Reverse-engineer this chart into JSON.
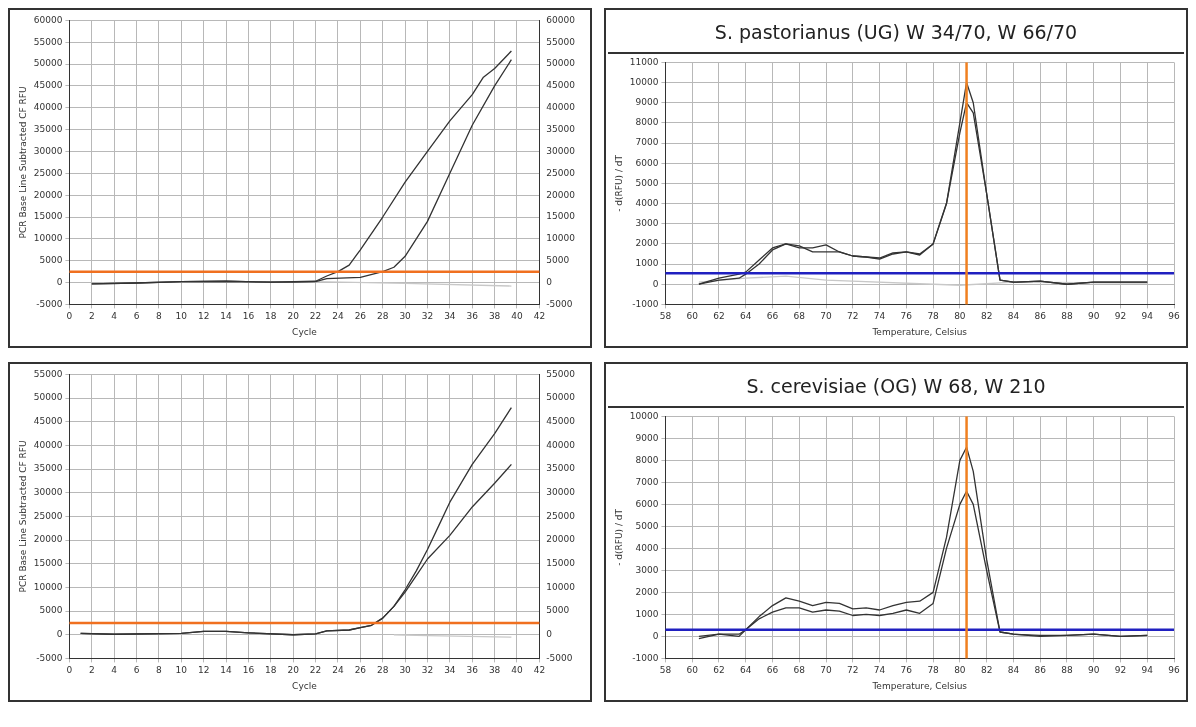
{
  "chart_data": [
    {
      "type": "line",
      "xlabel": "Cycle",
      "ylabel": "PCR Base Line Subtracted CF RFU",
      "xlim": [
        0,
        42
      ],
      "xticks": [
        0,
        2,
        4,
        6,
        8,
        10,
        12,
        14,
        16,
        18,
        20,
        22,
        24,
        26,
        28,
        30,
        32,
        34,
        36,
        38,
        40,
        42
      ],
      "ylim": [
        -5000,
        60000
      ],
      "yticks": [
        -5000,
        0,
        5000,
        10000,
        15000,
        20000,
        25000,
        30000,
        35000,
        40000,
        45000,
        50000,
        55000,
        60000
      ],
      "y2lim": [
        -5000,
        60000
      ],
      "y2ticks": [
        -5000,
        0,
        5000,
        10000,
        15000,
        20000,
        25000,
        30000,
        35000,
        40000,
        45000,
        50000,
        55000,
        60000
      ],
      "grid": true,
      "legend": false,
      "line_style": "solid",
      "marker": "none",
      "ref_lines": [
        {
          "axis": "y",
          "value": 2500,
          "color": "#f07020"
        }
      ],
      "series": [
        {
          "color": "#333333",
          "x": [
            2,
            6,
            10,
            14,
            18,
            20,
            22,
            23,
            24,
            25,
            26,
            28,
            30,
            32,
            34,
            36,
            37,
            38,
            39.5
          ],
          "values": [
            -300,
            -100,
            200,
            300,
            100,
            200,
            300,
            1500,
            2500,
            4000,
            7500,
            15000,
            23000,
            30000,
            37000,
            43000,
            47000,
            49000,
            53000
          ]
        },
        {
          "color": "#333333",
          "x": [
            2,
            6,
            10,
            14,
            18,
            20,
            22,
            23,
            26,
            28,
            29,
            30,
            31,
            32,
            34,
            36,
            38,
            39.5
          ],
          "values": [
            -300,
            -100,
            200,
            300,
            100,
            100,
            200,
            900,
            1200,
            2500,
            3500,
            6000,
            10000,
            14000,
            25000,
            36000,
            45000,
            51000
          ]
        },
        {
          "color": "#c8c8c8",
          "x": [
            10,
            22,
            30,
            39.5
          ],
          "values": [
            100,
            200,
            -200,
            -800
          ]
        }
      ]
    },
    {
      "type": "line",
      "title": "S. pastorianus (UG) W 34/70, W 66/70",
      "xlabel": "Temperature, Celsius",
      "ylabel": "- d(RFU) / dT",
      "xlim": [
        58,
        96
      ],
      "xticks": [
        58,
        60,
        62,
        64,
        66,
        68,
        70,
        72,
        74,
        76,
        78,
        80,
        82,
        84,
        86,
        88,
        90,
        92,
        94,
        96
      ],
      "ylim": [
        -1000,
        11000
      ],
      "yticks": [
        -1000,
        0,
        1000,
        2000,
        3000,
        4000,
        5000,
        6000,
        7000,
        8000,
        9000,
        10000,
        11000
      ],
      "grid": true,
      "legend": false,
      "line_style": "solid",
      "marker": "none",
      "ref_lines": [
        {
          "axis": "y",
          "value": 550,
          "color": "#2020c0"
        },
        {
          "axis": "x",
          "value": 80.5,
          "color": "#f08020"
        }
      ],
      "series": [
        {
          "color": "#333333",
          "x": [
            60.5,
            62,
            63.5,
            64,
            65,
            66,
            67,
            68,
            69,
            70,
            71,
            72,
            73,
            74,
            75,
            76,
            77,
            78,
            79,
            80,
            80.5,
            81,
            82,
            83,
            84,
            86,
            88,
            90,
            92,
            94
          ],
          "values": [
            0,
            300,
            500,
            600,
            1200,
            1800,
            2000,
            1900,
            1600,
            1600,
            1600,
            1400,
            1350,
            1300,
            1550,
            1600,
            1500,
            2000,
            4000,
            8000,
            10000,
            9000,
            4500,
            200,
            100,
            150,
            0,
            100,
            100,
            100
          ]
        },
        {
          "color": "#333333",
          "x": [
            60.5,
            62,
            63.5,
            64,
            65,
            66,
            67,
            68,
            69,
            70,
            71,
            72,
            73,
            74,
            75,
            76,
            77,
            78,
            79,
            80,
            80.5,
            81,
            82,
            83,
            84,
            86,
            88,
            90,
            92,
            94
          ],
          "values": [
            0,
            200,
            300,
            500,
            1000,
            1700,
            2000,
            1800,
            1800,
            1950,
            1600,
            1400,
            1350,
            1250,
            1500,
            1600,
            1450,
            2000,
            4000,
            7500,
            9000,
            8500,
            4500,
            200,
            100,
            150,
            0,
            100,
            100,
            100
          ]
        },
        {
          "color": "#c8c8c8",
          "x": [
            60.5,
            64,
            67,
            70,
            80,
            84,
            94
          ],
          "values": [
            100,
            300,
            400,
            200,
            -50,
            100,
            50
          ]
        }
      ]
    },
    {
      "type": "line",
      "xlabel": "Cycle",
      "ylabel": "PCR Base Line Subtracted CF RFU",
      "xlim": [
        0,
        42
      ],
      "xticks": [
        0,
        2,
        4,
        6,
        8,
        10,
        12,
        14,
        16,
        18,
        20,
        22,
        24,
        26,
        28,
        30,
        32,
        34,
        36,
        38,
        40,
        42
      ],
      "ylim": [
        -5000,
        55000
      ],
      "yticks": [
        -5000,
        0,
        5000,
        10000,
        15000,
        20000,
        25000,
        30000,
        35000,
        40000,
        45000,
        50000,
        55000
      ],
      "y2lim": [
        -5000,
        55000
      ],
      "y2ticks": [
        -5000,
        0,
        5000,
        10000,
        15000,
        20000,
        25000,
        30000,
        35000,
        40000,
        45000,
        50000,
        55000
      ],
      "grid": true,
      "legend": false,
      "line_style": "solid",
      "marker": "none",
      "ref_lines": [
        {
          "axis": "y",
          "value": 2500,
          "color": "#f07020"
        }
      ],
      "series": [
        {
          "color": "#333333",
          "x": [
            1,
            4,
            10,
            12,
            14,
            16,
            20,
            22,
            23,
            25,
            26,
            27,
            28,
            29,
            30,
            31,
            32,
            33,
            34,
            36,
            38,
            39.5
          ],
          "values": [
            300,
            100,
            300,
            700,
            700,
            400,
            0,
            200,
            800,
            1000,
            1500,
            2000,
            3500,
            6000,
            9500,
            13500,
            18000,
            23000,
            28000,
            36000,
            42500,
            48000
          ]
        },
        {
          "color": "#333333",
          "x": [
            1,
            4,
            10,
            12,
            14,
            16,
            20,
            22,
            23,
            25,
            26,
            27,
            28,
            29,
            30,
            31,
            32,
            34,
            36,
            38,
            39.5
          ],
          "values": [
            300,
            100,
            300,
            700,
            700,
            400,
            0,
            200,
            800,
            1000,
            1500,
            2000,
            3500,
            6000,
            9000,
            12500,
            16000,
            21000,
            27000,
            32000,
            36000
          ]
        },
        {
          "color": "#c8c8c8",
          "x": [
            29,
            32,
            39.5
          ],
          "values": [
            0,
            -200,
            -500
          ]
        }
      ]
    },
    {
      "type": "line",
      "title": "S. cerevisiae (OG) W 68, W 210",
      "xlabel": "Temperature, Celsius",
      "ylabel": "- d(RFU) / dT",
      "xlim": [
        58,
        96
      ],
      "xticks": [
        58,
        60,
        62,
        64,
        66,
        68,
        70,
        72,
        74,
        76,
        78,
        80,
        82,
        84,
        86,
        88,
        90,
        92,
        94,
        96
      ],
      "ylim": [
        -1000,
        10000
      ],
      "yticks": [
        -1000,
        0,
        1000,
        2000,
        3000,
        4000,
        5000,
        6000,
        7000,
        8000,
        9000,
        10000
      ],
      "grid": true,
      "legend": false,
      "line_style": "solid",
      "marker": "none",
      "ref_lines": [
        {
          "axis": "y",
          "value": 300,
          "color": "#2020c0"
        },
        {
          "axis": "x",
          "value": 80.5,
          "color": "#f08020"
        }
      ],
      "series": [
        {
          "color": "#333333",
          "x": [
            60.5,
            62,
            63.5,
            64,
            65,
            66,
            67,
            68,
            69,
            70,
            71,
            72,
            73,
            74,
            75,
            76,
            77,
            78,
            79,
            80,
            80.5,
            81,
            82,
            83,
            84,
            86,
            88,
            90,
            92,
            94
          ],
          "values": [
            0,
            100,
            100,
            300,
            900,
            1400,
            1750,
            1600,
            1400,
            1550,
            1500,
            1250,
            1300,
            1200,
            1400,
            1550,
            1600,
            2000,
            4500,
            8000,
            8600,
            7500,
            3500,
            200,
            100,
            50,
            50,
            100,
            0,
            50
          ]
        },
        {
          "color": "#333333",
          "x": [
            60.5,
            62,
            63.5,
            64,
            65,
            66,
            67,
            68,
            69,
            70,
            71,
            72,
            73,
            74,
            75,
            76,
            77,
            78,
            79,
            80,
            80.5,
            81,
            82,
            83,
            84,
            86,
            88,
            90,
            92,
            94
          ],
          "values": [
            -100,
            100,
            0,
            300,
            800,
            1100,
            1300,
            1300,
            1100,
            1200,
            1150,
            950,
            1000,
            950,
            1050,
            1200,
            1050,
            1500,
            4000,
            6000,
            6600,
            6000,
            3000,
            200,
            100,
            0,
            50,
            100,
            0,
            50
          ]
        }
      ]
    }
  ]
}
